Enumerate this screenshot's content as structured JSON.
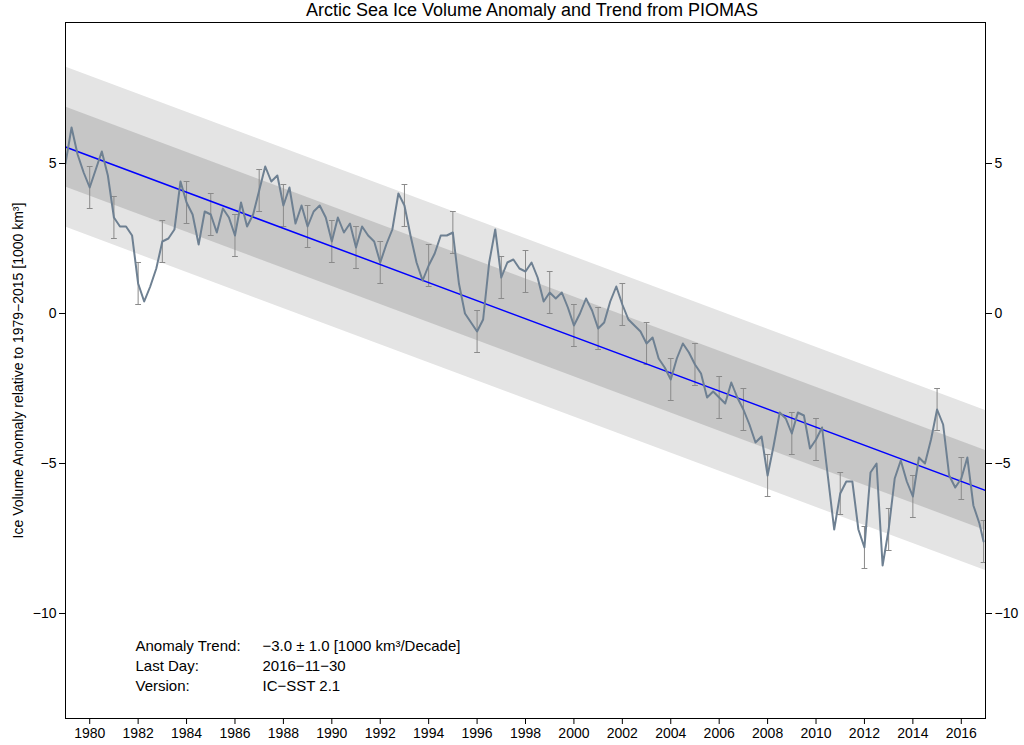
{
  "chart_data": {
    "type": "line",
    "title": "Arctic Sea Ice Volume Anomaly and Trend from PIOMAS",
    "ylabel": "Ice Volume Anomaly relative to 1979−2015 [1000 km³]",
    "xlim": [
      1979,
      2017
    ],
    "xticks": [
      1980,
      1982,
      1984,
      1986,
      1988,
      1990,
      1992,
      1994,
      1996,
      1998,
      2000,
      2002,
      2004,
      2006,
      2008,
      2010,
      2012,
      2014,
      2016
    ],
    "ylim": [
      -13.5,
      9.7
    ],
    "yticks": [
      -10,
      -5,
      0,
      5
    ],
    "series": [
      {
        "type": "area",
        "color": "#e4e4e4",
        "x": [
          1979,
          2017
        ],
        "lower": [
          2.88,
          -8.57
        ],
        "upper": [
          8.22,
          -3.23
        ]
      },
      {
        "type": "area",
        "color": "#c6c6c6",
        "x": [
          1979,
          2017
        ],
        "lower": [
          4.22,
          -7.23
        ],
        "upper": [
          6.88,
          -4.57
        ]
      },
      {
        "type": "line",
        "color": "#0000ff",
        "x": [
          1979,
          2017
        ],
        "values": [
          5.55,
          -5.9
        ]
      },
      {
        "type": "line",
        "color": "#6e8092",
        "x": [
          1979,
          1979.25,
          1979.5,
          1979.75,
          1980,
          1980.25,
          1980.5,
          1980.75,
          1981,
          1981.25,
          1981.5,
          1981.75,
          1982,
          1982.25,
          1982.5,
          1982.75,
          1983,
          1983.25,
          1983.5,
          1983.75,
          1984,
          1984.25,
          1984.5,
          1984.75,
          1985,
          1985.25,
          1985.5,
          1985.75,
          1986,
          1986.25,
          1986.5,
          1986.75,
          1987,
          1987.25,
          1987.5,
          1987.75,
          1988,
          1988.25,
          1988.5,
          1988.75,
          1989,
          1989.25,
          1989.5,
          1989.75,
          1990,
          1990.25,
          1990.5,
          1990.75,
          1991,
          1991.25,
          1991.5,
          1991.75,
          1992,
          1992.25,
          1992.5,
          1992.75,
          1993,
          1993.25,
          1993.5,
          1993.75,
          1994,
          1994.25,
          1994.5,
          1994.75,
          1995,
          1995.25,
          1995.5,
          1995.75,
          1996,
          1996.25,
          1996.5,
          1996.75,
          1997,
          1997.25,
          1997.5,
          1997.75,
          1998,
          1998.25,
          1998.5,
          1998.75,
          1999,
          1999.25,
          1999.5,
          1999.75,
          2000,
          2000.25,
          2000.5,
          2000.75,
          2001,
          2001.25,
          2001.5,
          2001.75,
          2002,
          2002.25,
          2002.5,
          2002.75,
          2003,
          2003.25,
          2003.5,
          2003.75,
          2004,
          2004.25,
          2004.5,
          2004.75,
          2005,
          2005.25,
          2005.5,
          2005.75,
          2006,
          2006.25,
          2006.5,
          2006.75,
          2007,
          2007.25,
          2007.5,
          2007.75,
          2008,
          2008.25,
          2008.5,
          2008.75,
          2009,
          2009.25,
          2009.5,
          2009.75,
          2010,
          2010.25,
          2010.5,
          2010.75,
          2011,
          2011.25,
          2011.5,
          2011.75,
          2012,
          2012.25,
          2012.5,
          2012.75,
          2013,
          2013.25,
          2013.5,
          2013.75,
          2014,
          2014.25,
          2014.5,
          2014.75,
          2015,
          2015.25,
          2015.5,
          2015.75,
          2016,
          2016.25,
          2016.5,
          2016.75,
          2016.92
        ],
        "values": [
          5.0,
          6.2,
          5.3,
          4.7,
          4.2,
          4.8,
          5.4,
          4.6,
          3.2,
          2.9,
          2.9,
          2.6,
          1.0,
          0.4,
          0.9,
          1.5,
          2.4,
          2.5,
          2.8,
          4.4,
          3.7,
          3.3,
          2.3,
          3.4,
          3.3,
          2.7,
          3.5,
          3.2,
          2.6,
          3.7,
          2.9,
          3.3,
          4.1,
          4.9,
          4.4,
          4.6,
          3.6,
          4.2,
          3.0,
          3.6,
          2.9,
          3.4,
          3.6,
          3.2,
          2.4,
          3.2,
          2.7,
          3.0,
          2.2,
          2.9,
          2.6,
          2.4,
          1.7,
          2.3,
          2.8,
          4.0,
          3.6,
          2.6,
          1.7,
          1.1,
          1.6,
          2.0,
          2.6,
          2.6,
          2.7,
          1.0,
          0.0,
          -0.3,
          -0.6,
          -0.2,
          1.7,
          2.8,
          1.2,
          1.7,
          1.8,
          1.5,
          1.4,
          1.7,
          1.2,
          0.4,
          0.7,
          0.5,
          0.7,
          0.2,
          -0.4,
          0.0,
          0.5,
          0.1,
          -0.5,
          -0.3,
          0.4,
          0.9,
          0.3,
          -0.2,
          -0.4,
          -0.6,
          -1.0,
          -0.8,
          -1.5,
          -1.8,
          -2.2,
          -1.5,
          -1.0,
          -1.3,
          -1.7,
          -2.0,
          -2.8,
          -2.6,
          -2.8,
          -3.0,
          -2.3,
          -2.8,
          -3.2,
          -3.7,
          -4.3,
          -4.1,
          -5.4,
          -4.4,
          -3.3,
          -3.5,
          -4.0,
          -3.3,
          -3.4,
          -4.5,
          -4.2,
          -3.8,
          -5.5,
          -7.2,
          -6.0,
          -5.6,
          -5.6,
          -7.2,
          -7.8,
          -5.3,
          -5.0,
          -8.4,
          -7.2,
          -5.5,
          -4.9,
          -5.6,
          -6.1,
          -4.8,
          -5.0,
          -4.2,
          -3.2,
          -3.7,
          -5.4,
          -5.8,
          -5.5,
          -4.8,
          -6.4,
          -7.0,
          -7.6
        ],
        "error": [
          null,
          null,
          null,
          null,
          0.7,
          null,
          null,
          null,
          0.7,
          null,
          null,
          null,
          0.7,
          null,
          null,
          null,
          0.7,
          null,
          null,
          null,
          0.7,
          null,
          null,
          null,
          0.7,
          null,
          null,
          null,
          0.7,
          null,
          null,
          null,
          0.7,
          null,
          null,
          null,
          0.7,
          null,
          null,
          null,
          0.7,
          null,
          null,
          null,
          0.7,
          null,
          null,
          null,
          0.7,
          null,
          null,
          null,
          0.7,
          null,
          null,
          null,
          0.7,
          null,
          null,
          null,
          0.7,
          null,
          null,
          null,
          0.7,
          null,
          null,
          null,
          0.7,
          null,
          null,
          null,
          0.7,
          null,
          null,
          null,
          0.7,
          null,
          null,
          null,
          0.7,
          null,
          null,
          null,
          0.7,
          null,
          null,
          null,
          0.7,
          null,
          null,
          null,
          0.7,
          null,
          null,
          null,
          0.7,
          null,
          null,
          null,
          0.7,
          null,
          null,
          null,
          0.7,
          null,
          null,
          null,
          0.7,
          null,
          null,
          null,
          0.7,
          null,
          null,
          null,
          0.7,
          null,
          null,
          null,
          0.7,
          null,
          null,
          null,
          0.7,
          null,
          null,
          null,
          0.7,
          null,
          null,
          null,
          0.7,
          null,
          null,
          null,
          0.7,
          null,
          null,
          null,
          0.7,
          null,
          null,
          null,
          0.7,
          null,
          null,
          null,
          0.7,
          null,
          null,
          null,
          0.7,
          null,
          null,
          null,
          null
        ]
      }
    ],
    "annotations": [
      [
        "Anomaly Trend:",
        "−3.0 ± 1.0 [1000 km³/Decade]"
      ],
      [
        "Last Day:",
        "2016−11−30"
      ],
      [
        "Version:",
        "IC−SST 2.1"
      ]
    ]
  }
}
